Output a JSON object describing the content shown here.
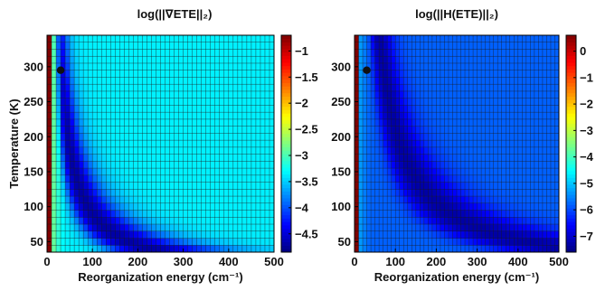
{
  "chart_data": [
    {
      "type": "heatmap",
      "title": "log(||∇ETE||₂)",
      "xlabel": "Reorganization energy (cm⁻¹)",
      "ylabel": "Temperature (K)",
      "xlim": [
        0,
        500
      ],
      "ylim": [
        35,
        345
      ],
      "xticks": [
        0,
        100,
        200,
        300,
        400,
        500
      ],
      "yticks": [
        50,
        100,
        150,
        200,
        250,
        300
      ],
      "grid": true,
      "colormap": "jet",
      "colorbar": {
        "range": [
          -4.85,
          -0.7
        ],
        "ticks": [
          -1,
          -1.5,
          -2,
          -2.5,
          -3,
          -3.5,
          -4,
          -4.5
        ]
      },
      "field": {
        "min_value": -4.7,
        "plateau": -3.35,
        "edge_value": -0.7,
        "valley_k": 9000,
        "valley_width": 0.23,
        "valley_depth": 1.35,
        "valley_sharpness": 0.05
      },
      "marker": {
        "x": 30,
        "y": 295
      }
    },
    {
      "type": "heatmap",
      "title": "log(||H(ETE)||₂)",
      "xlabel": "Reorganization energy (cm⁻¹)",
      "ylabel": "",
      "xlim": [
        0,
        500
      ],
      "ylim": [
        35,
        345
      ],
      "xticks": [
        0,
        100,
        200,
        300,
        400,
        500
      ],
      "yticks": [
        50,
        100,
        150,
        200,
        250,
        300
      ],
      "grid": true,
      "colormap": "jet",
      "colorbar": {
        "range": [
          -7.6,
          0.6
        ],
        "ticks": [
          0,
          -1,
          -2,
          -3,
          -4,
          -5,
          -6,
          -7
        ]
      },
      "field": {
        "min_value": -7.3,
        "plateau": -5.8,
        "edge_value": 0.6,
        "valley_k": 21000,
        "valley_width": 0.18,
        "valley_depth": 1.5,
        "valley_sharpness": 0.05
      },
      "marker": {
        "x": 30,
        "y": 295
      }
    }
  ]
}
